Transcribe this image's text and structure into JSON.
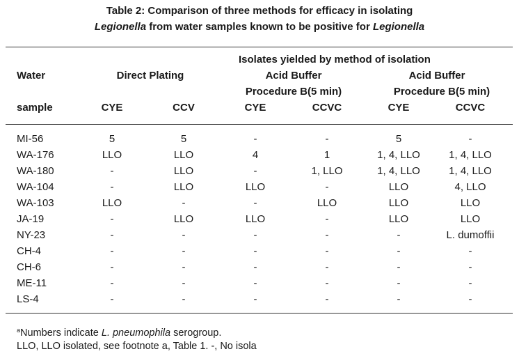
{
  "title": {
    "line1": "Table 2: Comparison of three methods for efficacy in isolating",
    "line2_italic_a": "Legionella",
    "line2_mid": " from water samples known to be positive for ",
    "line2_italic_b": "Legionella"
  },
  "header": {
    "supergroup": "Isolates yielded by method of isolation",
    "water_line1": "Water",
    "water_line2": "sample",
    "direct_plating": "Direct Plating",
    "acid_buffer_1_line1": "Acid Buffer",
    "acid_buffer_1_line2": "Procedure B(5 min)",
    "acid_buffer_2_line1": "Acid Buffer",
    "acid_buffer_2_line2": "Procedure B(5 min)",
    "subcols": [
      "CYE",
      "CCV",
      "CYE",
      "CCVC",
      "CYE",
      "CCVC"
    ]
  },
  "rows": [
    {
      "sample": "MI-56",
      "values": [
        "5",
        "5",
        "-",
        "-",
        "5",
        "-"
      ]
    },
    {
      "sample": "WA-176",
      "values": [
        "LLO",
        "LLO",
        "4",
        "1",
        "1, 4, LLO",
        "1, 4, LLO"
      ]
    },
    {
      "sample": "WA-180",
      "values": [
        "-",
        "LLO",
        "-",
        "1, LLO",
        "1, 4, LLO",
        "1, 4, LLO"
      ]
    },
    {
      "sample": "WA-104",
      "values": [
        "-",
        "LLO",
        "LLO",
        "-",
        "LLO",
        "4, LLO"
      ]
    },
    {
      "sample": "WA-103",
      "values": [
        "LLO",
        "-",
        "-",
        "LLO",
        "LLO",
        "LLO"
      ]
    },
    {
      "sample": "JA-19",
      "values": [
        "-",
        "LLO",
        "LLO",
        "-",
        "LLO",
        "LLO"
      ]
    },
    {
      "sample": "NY-23",
      "values": [
        "-",
        "-",
        "-",
        "-",
        "-",
        "L. dumoffii"
      ]
    },
    {
      "sample": "CH-4",
      "values": [
        "-",
        "-",
        "-",
        "-",
        "-",
        "-"
      ]
    },
    {
      "sample": "CH-6",
      "values": [
        "-",
        "-",
        "-",
        "-",
        "-",
        "-"
      ]
    },
    {
      "sample": "ME-11",
      "values": [
        "-",
        "-",
        "-",
        "-",
        "-",
        "-"
      ]
    },
    {
      "sample": "LS-4",
      "values": [
        "-",
        "-",
        "-",
        "-",
        "-",
        "-"
      ]
    }
  ],
  "footnotes": {
    "a_mark": "a",
    "a_text1": "Numbers indicate ",
    "a_italic": "L. pneumophila",
    "a_text2": " serogroup.",
    "line2": "LLO, LLO isolated, see footnote a, Table 1. -, No isola"
  }
}
